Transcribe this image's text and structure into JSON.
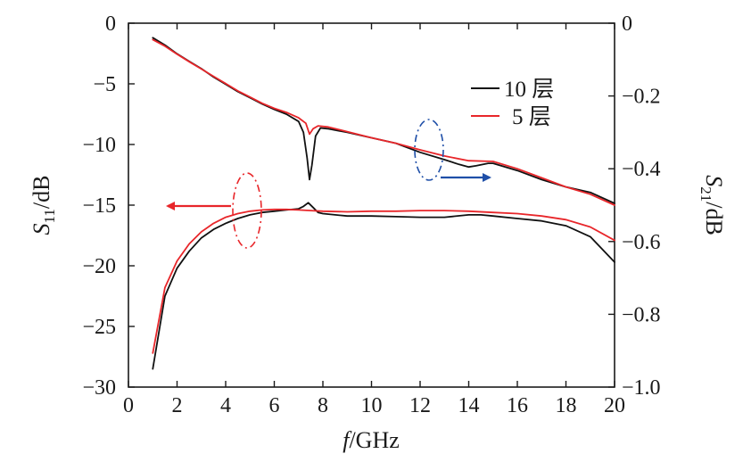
{
  "chart_data": {
    "type": "line",
    "x_axis": {
      "label_italic": "f",
      "label_unit": "/GHz",
      "range": [
        0,
        20
      ],
      "ticks": [
        "0",
        "2",
        "4",
        "6",
        "8",
        "10",
        "12",
        "14",
        "16",
        "18",
        "20"
      ]
    },
    "y_left": {
      "label_main": "S",
      "label_sub": "11",
      "label_unit": "/dB",
      "range": [
        -30,
        0
      ],
      "ticks": [
        "0",
        "−5",
        "−10",
        "−15",
        "−20",
        "−25",
        "−30"
      ]
    },
    "y_right": {
      "label_main": "S",
      "label_sub": "21",
      "label_unit": "/dB",
      "range": [
        -1.0,
        0
      ],
      "ticks": [
        "0",
        "−0.2",
        "−0.4",
        "−0.6",
        "−0.8",
        "−1.0"
      ]
    },
    "legend": {
      "position": "top-right",
      "items": [
        {
          "label": "10 层",
          "color": "#111111"
        },
        {
          "label": "5 层",
          "color": "#e8262a"
        }
      ]
    },
    "series": [
      {
        "name": "10 层 S11",
        "axis": "left",
        "color": "#111111",
        "x": [
          1,
          1.5,
          2,
          2.5,
          3,
          3.5,
          4,
          4.5,
          5,
          5.5,
          6,
          6.5,
          7,
          7.2,
          7.4,
          7.6,
          7.8,
          8,
          9,
          10,
          11,
          12,
          13,
          14,
          14.5,
          15,
          16,
          17,
          18,
          19,
          20
        ],
        "values": [
          -28.5,
          -22.5,
          -20.2,
          -18.8,
          -17.7,
          -17.0,
          -16.5,
          -16.1,
          -15.8,
          -15.6,
          -15.5,
          -15.4,
          -15.3,
          -15.1,
          -14.8,
          -15.2,
          -15.6,
          -15.7,
          -15.9,
          -15.9,
          -15.95,
          -16.0,
          -16.0,
          -15.8,
          -15.8,
          -15.9,
          -16.1,
          -16.3,
          -16.7,
          -17.6,
          -19.7
        ]
      },
      {
        "name": "5 层 S11",
        "axis": "left",
        "color": "#e8262a",
        "x": [
          1,
          1.5,
          2,
          2.5,
          3,
          3.5,
          4,
          4.5,
          5,
          5.5,
          6,
          6.5,
          7,
          7.5,
          8,
          9,
          10,
          11,
          12,
          13,
          14,
          15,
          16,
          17,
          18,
          19,
          20
        ],
        "values": [
          -27.2,
          -21.8,
          -19.6,
          -18.2,
          -17.2,
          -16.5,
          -16.0,
          -15.7,
          -15.5,
          -15.4,
          -15.35,
          -15.35,
          -15.4,
          -15.45,
          -15.5,
          -15.55,
          -15.5,
          -15.5,
          -15.45,
          -15.45,
          -15.5,
          -15.6,
          -15.7,
          -15.9,
          -16.2,
          -16.8,
          -17.9
        ]
      },
      {
        "name": "10 层 S21",
        "axis": "right",
        "color": "#111111",
        "x": [
          1,
          1.5,
          2,
          2.5,
          3,
          3.5,
          4,
          4.5,
          5,
          5.5,
          6,
          6.5,
          7,
          7.2,
          7.35,
          7.45,
          7.55,
          7.7,
          7.9,
          8.2,
          9,
          10,
          11,
          12,
          13,
          13.6,
          14,
          14.3,
          14.8,
          15,
          16,
          17,
          18,
          19,
          20
        ],
        "values": [
          -0.04,
          -0.06,
          -0.084,
          -0.105,
          -0.125,
          -0.148,
          -0.168,
          -0.188,
          -0.205,
          -0.222,
          -0.237,
          -0.25,
          -0.27,
          -0.3,
          -0.37,
          -0.43,
          -0.39,
          -0.31,
          -0.288,
          -0.29,
          -0.3,
          -0.315,
          -0.33,
          -0.355,
          -0.375,
          -0.388,
          -0.395,
          -0.392,
          -0.385,
          -0.385,
          -0.405,
          -0.43,
          -0.45,
          -0.465,
          -0.495
        ]
      },
      {
        "name": "5 层 S21",
        "axis": "right",
        "color": "#e8262a",
        "x": [
          1,
          1.5,
          2,
          2.5,
          3,
          3.5,
          4,
          4.5,
          5,
          5.5,
          6,
          6.5,
          7,
          7.3,
          7.45,
          7.6,
          7.8,
          8.2,
          9,
          10,
          11,
          12,
          13,
          14,
          15,
          16,
          17,
          18,
          19,
          20
        ],
        "values": [
          -0.045,
          -0.063,
          -0.085,
          -0.106,
          -0.126,
          -0.146,
          -0.166,
          -0.186,
          -0.203,
          -0.22,
          -0.234,
          -0.245,
          -0.26,
          -0.275,
          -0.305,
          -0.29,
          -0.282,
          -0.285,
          -0.298,
          -0.315,
          -0.33,
          -0.348,
          -0.365,
          -0.378,
          -0.38,
          -0.4,
          -0.425,
          -0.45,
          -0.47,
          -0.5
        ]
      }
    ],
    "annotations": [
      {
        "type": "ellipse",
        "style": "dash-dot",
        "color": "#e8262a",
        "arrow": "left",
        "meaning": "S11 curves → left axis"
      },
      {
        "type": "ellipse",
        "style": "dash-dot",
        "color": "#1f4fa8",
        "arrow": "right",
        "meaning": "S21 curves → right axis"
      }
    ]
  }
}
